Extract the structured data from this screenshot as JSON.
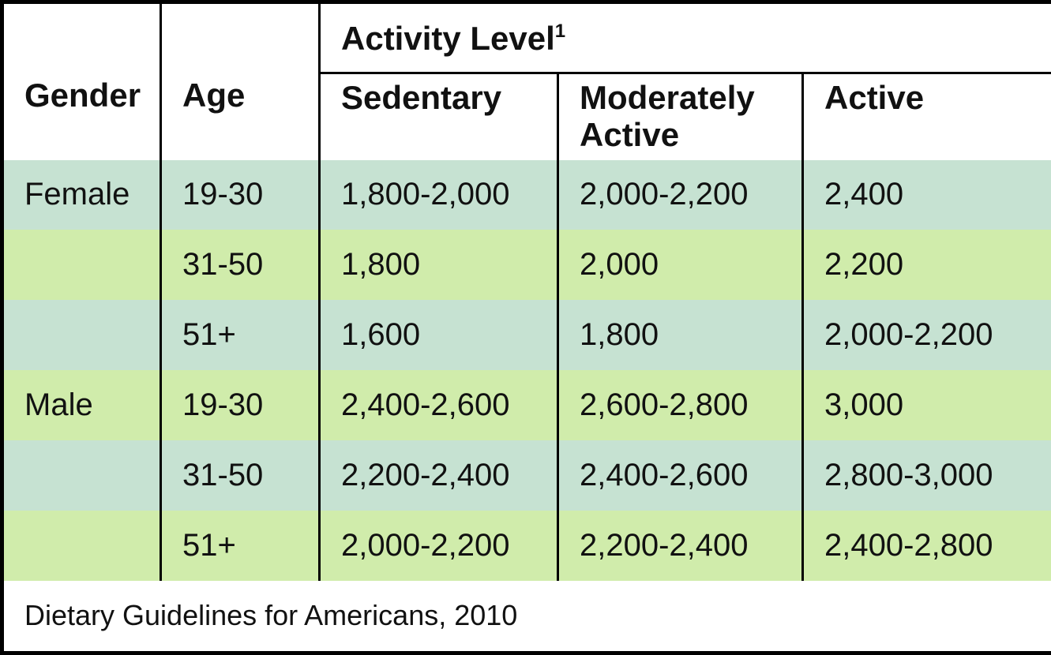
{
  "table": {
    "header": {
      "gender": "Gender",
      "age": "Age",
      "activity_level": "Activity Level",
      "activity_level_footnote": "1",
      "sedentary": "Sedentary",
      "moderately_active": "Moderately Active",
      "active": "Active"
    },
    "rows": [
      {
        "gender": "Female",
        "age": "19-30",
        "sedentary": "1,800-2,000",
        "moderately_active": "2,000-2,200",
        "active": "2,400"
      },
      {
        "gender": "",
        "age": "31-50",
        "sedentary": "1,800",
        "moderately_active": "2,000",
        "active": "2,200"
      },
      {
        "gender": "",
        "age": "51+",
        "sedentary": "1,600",
        "moderately_active": "1,800",
        "active": "2,000-2,200"
      },
      {
        "gender": "Male",
        "age": "19-30",
        "sedentary": "2,400-2,600",
        "moderately_active": "2,600-2,800",
        "active": "3,000"
      },
      {
        "gender": "",
        "age": "31-50",
        "sedentary": "2,200-2,400",
        "moderately_active": "2,400-2,600",
        "active": "2,800-3,000"
      },
      {
        "gender": "",
        "age": "51+",
        "sedentary": "2,000-2,200",
        "moderately_active": "2,200-2,400",
        "active": "2,400-2,800"
      }
    ],
    "footer": "Dietary Guidelines for Americans, 2010"
  },
  "colors": {
    "row_mint": "#c6e2d2",
    "row_green": "#d0ecab",
    "border": "#000000",
    "background": "#ffffff",
    "text": "#111111"
  },
  "chart_data": {
    "type": "table",
    "title": "Activity Level",
    "column_group": {
      "label": "Activity Level",
      "footnote": "1",
      "spans": [
        "Sedentary",
        "Moderately Active",
        "Active"
      ]
    },
    "columns": [
      "Gender",
      "Age",
      "Sedentary",
      "Moderately Active",
      "Active"
    ],
    "rows": [
      [
        "Female",
        "19-30",
        "1,800-2,000",
        "2,000-2,200",
        "2,400"
      ],
      [
        "",
        "31-50",
        "1,800",
        "2,000",
        "2,200"
      ],
      [
        "",
        "51+",
        "1,600",
        "1,800",
        "2,000-2,200"
      ],
      [
        "Male",
        "19-30",
        "2,400-2,600",
        "2,600-2,800",
        "3,000"
      ],
      [
        "",
        "31-50",
        "2,200-2,400",
        "2,400-2,600",
        "2,800-3,000"
      ],
      [
        "",
        "51+",
        "2,000-2,200",
        "2,200-2,400",
        "2,400-2,800"
      ]
    ],
    "source": "Dietary Guidelines for Americans, 2010",
    "layout_hints": {
      "row_stripe_colors": [
        "#c6e2d2",
        "#d0ecab"
      ],
      "grid": "vertical-rules-only",
      "header_background": "#ffffff"
    }
  }
}
